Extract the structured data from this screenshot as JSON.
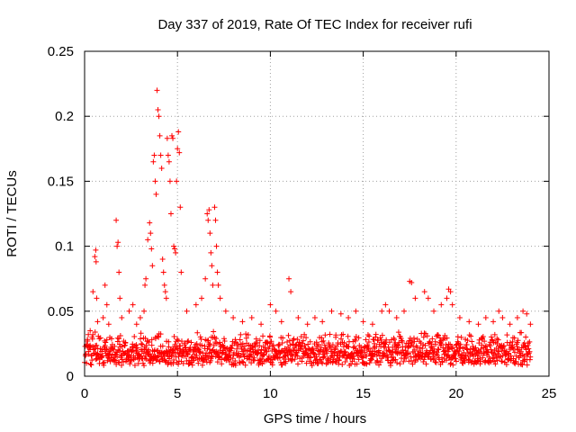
{
  "chart_data": {
    "type": "scatter",
    "title": "Day 337 of 2019, Rate Of TEC Index for receiver rufi",
    "xlabel": "GPS time / hours",
    "ylabel": "ROTI / TECUs",
    "xlim": [
      0,
      25
    ],
    "ylim": [
      0,
      0.25
    ],
    "xticks": [
      0,
      5,
      10,
      15,
      20,
      25
    ],
    "xtick_labels": [
      "0",
      "5",
      "10",
      "15",
      "20",
      "25"
    ],
    "yticks": [
      0,
      0.05,
      0.1,
      0.15,
      0.2,
      0.25
    ],
    "ytick_labels": [
      "0",
      "0.05",
      "0.1",
      "0.15",
      "0.2",
      "0.25"
    ],
    "grid": true,
    "marker": "+",
    "color": "#ff0000",
    "x_range_of_data": [
      0,
      24
    ],
    "baseline_band": [
      0.008,
      0.035
    ],
    "series": [
      {
        "name": "ROTI",
        "points": [
          [
            0.1,
            0.024
          ],
          [
            0.2,
            0.032
          ],
          [
            0.3,
            0.035
          ],
          [
            0.4,
            0.03
          ],
          [
            0.45,
            0.065
          ],
          [
            0.55,
            0.092
          ],
          [
            0.6,
            0.097
          ],
          [
            0.62,
            0.088
          ],
          [
            0.65,
            0.06
          ],
          [
            0.7,
            0.042
          ],
          [
            1.0,
            0.045
          ],
          [
            1.1,
            0.07
          ],
          [
            1.2,
            0.055
          ],
          [
            1.3,
            0.04
          ],
          [
            1.7,
            0.12
          ],
          [
            1.75,
            0.1
          ],
          [
            1.8,
            0.103
          ],
          [
            1.85,
            0.08
          ],
          [
            1.9,
            0.06
          ],
          [
            2.0,
            0.045
          ],
          [
            2.4,
            0.05
          ],
          [
            2.6,
            0.055
          ],
          [
            2.8,
            0.04
          ],
          [
            3.0,
            0.045
          ],
          [
            3.2,
            0.05
          ],
          [
            3.25,
            0.07
          ],
          [
            3.3,
            0.075
          ],
          [
            3.4,
            0.105
          ],
          [
            3.5,
            0.118
          ],
          [
            3.55,
            0.11
          ],
          [
            3.6,
            0.098
          ],
          [
            3.65,
            0.085
          ],
          [
            3.7,
            0.165
          ],
          [
            3.75,
            0.17
          ],
          [
            3.8,
            0.15
          ],
          [
            3.85,
            0.14
          ],
          [
            3.9,
            0.22
          ],
          [
            3.95,
            0.205
          ],
          [
            4.0,
            0.2
          ],
          [
            4.05,
            0.185
          ],
          [
            4.1,
            0.17
          ],
          [
            4.15,
            0.16
          ],
          [
            4.2,
            0.09
          ],
          [
            4.25,
            0.08
          ],
          [
            4.3,
            0.07
          ],
          [
            4.35,
            0.065
          ],
          [
            4.4,
            0.06
          ],
          [
            4.45,
            0.183
          ],
          [
            4.5,
            0.17
          ],
          [
            4.55,
            0.165
          ],
          [
            4.6,
            0.15
          ],
          [
            4.65,
            0.125
          ],
          [
            4.7,
            0.185
          ],
          [
            4.75,
            0.183
          ],
          [
            4.8,
            0.1
          ],
          [
            4.85,
            0.098
          ],
          [
            4.9,
            0.095
          ],
          [
            4.95,
            0.15
          ],
          [
            5.0,
            0.175
          ],
          [
            5.05,
            0.188
          ],
          [
            5.1,
            0.172
          ],
          [
            5.15,
            0.13
          ],
          [
            5.2,
            0.08
          ],
          [
            5.5,
            0.05
          ],
          [
            6.0,
            0.055
          ],
          [
            6.3,
            0.06
          ],
          [
            6.5,
            0.075
          ],
          [
            6.6,
            0.125
          ],
          [
            6.65,
            0.12
          ],
          [
            6.7,
            0.128
          ],
          [
            6.75,
            0.11
          ],
          [
            6.8,
            0.095
          ],
          [
            6.85,
            0.085
          ],
          [
            6.9,
            0.07
          ],
          [
            7.0,
            0.13
          ],
          [
            7.05,
            0.12
          ],
          [
            7.1,
            0.1
          ],
          [
            7.15,
            0.08
          ],
          [
            7.2,
            0.07
          ],
          [
            7.3,
            0.06
          ],
          [
            7.6,
            0.05
          ],
          [
            8.0,
            0.045
          ],
          [
            8.5,
            0.042
          ],
          [
            9.0,
            0.045
          ],
          [
            9.5,
            0.04
          ],
          [
            10.0,
            0.055
          ],
          [
            10.3,
            0.05
          ],
          [
            10.6,
            0.042
          ],
          [
            11.0,
            0.075
          ],
          [
            11.1,
            0.065
          ],
          [
            11.5,
            0.045
          ],
          [
            12.0,
            0.04
          ],
          [
            12.4,
            0.045
          ],
          [
            12.8,
            0.042
          ],
          [
            13.3,
            0.05
          ],
          [
            13.8,
            0.048
          ],
          [
            14.2,
            0.045
          ],
          [
            14.6,
            0.05
          ],
          [
            15.0,
            0.042
          ],
          [
            15.5,
            0.04
          ],
          [
            16.0,
            0.05
          ],
          [
            16.2,
            0.055
          ],
          [
            16.4,
            0.05
          ],
          [
            16.8,
            0.045
          ],
          [
            17.2,
            0.05
          ],
          [
            17.5,
            0.073
          ],
          [
            17.6,
            0.072
          ],
          [
            17.8,
            0.06
          ],
          [
            18.3,
            0.065
          ],
          [
            18.5,
            0.06
          ],
          [
            18.8,
            0.05
          ],
          [
            19.2,
            0.055
          ],
          [
            19.5,
            0.06
          ],
          [
            19.6,
            0.067
          ],
          [
            19.7,
            0.065
          ],
          [
            19.8,
            0.055
          ],
          [
            20.2,
            0.045
          ],
          [
            20.7,
            0.042
          ],
          [
            21.2,
            0.04
          ],
          [
            21.6,
            0.045
          ],
          [
            22.0,
            0.042
          ],
          [
            22.3,
            0.05
          ],
          [
            22.5,
            0.045
          ],
          [
            22.9,
            0.04
          ],
          [
            23.3,
            0.045
          ],
          [
            23.6,
            0.05
          ],
          [
            23.8,
            0.048
          ],
          [
            24.0,
            0.04
          ]
        ]
      }
    ]
  }
}
